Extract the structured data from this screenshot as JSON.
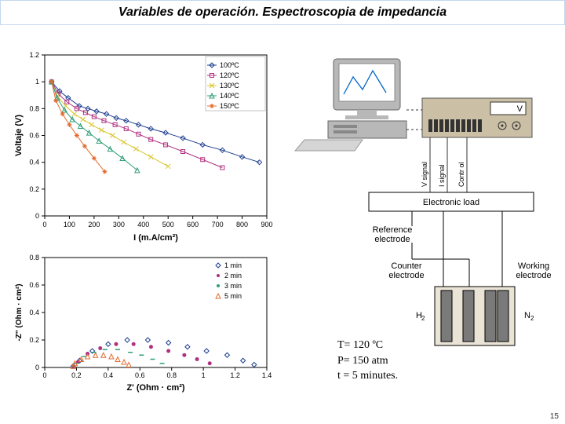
{
  "title": "Variables de operación. Espectroscopia de impedancia",
  "chart1": {
    "type": "line",
    "xlabel": "I (m.A/cm²)",
    "ylabel": "Voltaje (V)",
    "xlim": [
      0,
      900
    ],
    "ylim": [
      0,
      1.2
    ],
    "xtick_step": 100,
    "ytick_step": 0.2,
    "xticks": [
      "0",
      "100",
      "200",
      "300",
      "400",
      "500",
      "600",
      "700",
      "800",
      "900"
    ],
    "yticks": [
      "0",
      "0.2",
      "0.4",
      "0.6",
      "0.8",
      "1",
      "1.2"
    ],
    "axis_color": "#000000",
    "grid_color": "#ffffff",
    "background": "#ffffff",
    "label_fontsize": 11,
    "tick_fontsize": 9,
    "legend_items": [
      {
        "label": "100ºC",
        "marker": "diamond",
        "color": "#1b3d8f"
      },
      {
        "label": "120ºC",
        "marker": "square",
        "color": "#b03080"
      },
      {
        "label": "130ºC",
        "marker": "x",
        "color": "#d7c52e"
      },
      {
        "label": "140ºC",
        "marker": "triangle",
        "color": "#2e9e7a"
      },
      {
        "label": "150ºC",
        "marker": "asterisk",
        "color": "#e46a2e"
      }
    ],
    "series": [
      {
        "name": "100ºC",
        "color": "#1b3d8f",
        "marker": "diamond",
        "points": [
          [
            28,
            1.0
          ],
          [
            60,
            0.93
          ],
          [
            95,
            0.88
          ],
          [
            140,
            0.82
          ],
          [
            175,
            0.8
          ],
          [
            210,
            0.78
          ],
          [
            250,
            0.76
          ],
          [
            290,
            0.73
          ],
          [
            330,
            0.71
          ],
          [
            380,
            0.68
          ],
          [
            430,
            0.65
          ],
          [
            490,
            0.62
          ],
          [
            560,
            0.58
          ],
          [
            640,
            0.53
          ],
          [
            720,
            0.49
          ],
          [
            800,
            0.44
          ],
          [
            870,
            0.4
          ]
        ]
      },
      {
        "name": "120ºC",
        "color": "#b03080",
        "marker": "square",
        "points": [
          [
            28,
            1.0
          ],
          [
            55,
            0.91
          ],
          [
            90,
            0.85
          ],
          [
            130,
            0.8
          ],
          [
            165,
            0.77
          ],
          [
            200,
            0.74
          ],
          [
            240,
            0.71
          ],
          [
            285,
            0.68
          ],
          [
            330,
            0.65
          ],
          [
            380,
            0.61
          ],
          [
            430,
            0.57
          ],
          [
            490,
            0.53
          ],
          [
            560,
            0.48
          ],
          [
            640,
            0.42
          ],
          [
            720,
            0.36
          ]
        ]
      },
      {
        "name": "130ºC",
        "color": "#d7c52e",
        "marker": "x",
        "points": [
          [
            28,
            1.0
          ],
          [
            52,
            0.89
          ],
          [
            85,
            0.82
          ],
          [
            120,
            0.76
          ],
          [
            155,
            0.72
          ],
          [
            190,
            0.68
          ],
          [
            230,
            0.64
          ],
          [
            275,
            0.6
          ],
          [
            320,
            0.55
          ],
          [
            370,
            0.5
          ],
          [
            430,
            0.44
          ],
          [
            500,
            0.37
          ]
        ]
      },
      {
        "name": "140ºC",
        "color": "#2e9e7a",
        "marker": "triangle",
        "points": [
          [
            28,
            1.0
          ],
          [
            50,
            0.88
          ],
          [
            80,
            0.79
          ],
          [
            112,
            0.72
          ],
          [
            145,
            0.67
          ],
          [
            180,
            0.62
          ],
          [
            220,
            0.56
          ],
          [
            265,
            0.5
          ],
          [
            315,
            0.43
          ],
          [
            375,
            0.34
          ]
        ]
      },
      {
        "name": "150ºC",
        "color": "#e46a2e",
        "marker": "asterisk",
        "points": [
          [
            28,
            1.0
          ],
          [
            45,
            0.86
          ],
          [
            72,
            0.76
          ],
          [
            100,
            0.68
          ],
          [
            130,
            0.6
          ],
          [
            162,
            0.52
          ],
          [
            200,
            0.43
          ],
          [
            243,
            0.33
          ]
        ]
      }
    ]
  },
  "chart2": {
    "type": "scatter",
    "xlabel": "Z' (Ohm · cm²)",
    "ylabel": "-Z'' (Ohm · cm²)",
    "xlim": [
      0,
      1.4
    ],
    "ylim": [
      0,
      0.8
    ],
    "xtick_step": 0.2,
    "ytick_step": 0.2,
    "xticks": [
      "0",
      "0.2",
      "0.4",
      "0.6",
      "0.8",
      "1",
      "1.2",
      "1.4"
    ],
    "yticks": [
      "0",
      "0.2",
      "0.4",
      "0.6",
      "0.8"
    ],
    "axis_color": "#000000",
    "background": "#ffffff",
    "label_fontsize": 11,
    "tick_fontsize": 9,
    "legend_items": [
      {
        "label": "1 min",
        "marker": "diamond",
        "color": "#1b3d8f"
      },
      {
        "label": "2 min",
        "marker": "dot",
        "color": "#b03080"
      },
      {
        "label": "3 min",
        "marker": "dash",
        "color": "#2e9e7a"
      },
      {
        "label": "5 min",
        "marker": "triangle",
        "color": "#e46a2e"
      }
    ],
    "series": [
      {
        "name": "1 min",
        "color": "#1b3d8f",
        "marker": "diamond",
        "points": [
          [
            0.18,
            0.01
          ],
          [
            0.22,
            0.05
          ],
          [
            0.3,
            0.12
          ],
          [
            0.4,
            0.17
          ],
          [
            0.52,
            0.2
          ],
          [
            0.65,
            0.2
          ],
          [
            0.78,
            0.18
          ],
          [
            0.9,
            0.15
          ],
          [
            1.02,
            0.12
          ],
          [
            1.15,
            0.09
          ],
          [
            1.25,
            0.05
          ],
          [
            1.32,
            0.02
          ]
        ]
      },
      {
        "name": "2 min",
        "color": "#b03080",
        "marker": "circle",
        "points": [
          [
            0.18,
            0.01
          ],
          [
            0.21,
            0.04
          ],
          [
            0.27,
            0.1
          ],
          [
            0.35,
            0.14
          ],
          [
            0.45,
            0.17
          ],
          [
            0.56,
            0.17
          ],
          [
            0.67,
            0.15
          ],
          [
            0.78,
            0.12
          ],
          [
            0.88,
            0.09
          ],
          [
            0.96,
            0.06
          ],
          [
            1.04,
            0.03
          ]
        ]
      },
      {
        "name": "3 min",
        "color": "#2e9e7a",
        "marker": "hline",
        "points": [
          [
            0.18,
            0.01
          ],
          [
            0.2,
            0.03
          ],
          [
            0.25,
            0.08
          ],
          [
            0.31,
            0.11
          ],
          [
            0.38,
            0.13
          ],
          [
            0.46,
            0.13
          ],
          [
            0.54,
            0.11
          ],
          [
            0.61,
            0.09
          ],
          [
            0.68,
            0.06
          ],
          [
            0.74,
            0.03
          ]
        ]
      },
      {
        "name": "5 min",
        "color": "#e46a2e",
        "marker": "triangle",
        "points": [
          [
            0.18,
            0.01
          ],
          [
            0.19,
            0.03
          ],
          [
            0.23,
            0.06
          ],
          [
            0.27,
            0.08
          ],
          [
            0.32,
            0.09
          ],
          [
            0.37,
            0.09
          ],
          [
            0.42,
            0.08
          ],
          [
            0.46,
            0.06
          ],
          [
            0.5,
            0.04
          ],
          [
            0.53,
            0.02
          ]
        ]
      }
    ]
  },
  "schematic": {
    "monitor_color": "#b8b8b8",
    "screen_color": "#ffffff",
    "plot_color": "#0066cc",
    "frg_color": "#cbbfa6",
    "knob_color": "#555555",
    "electronic_load_label": "Electronic load",
    "electronic_load_bg": "#ffffff",
    "reference_label": "Reference electrode",
    "counter_label": "Counter electrode",
    "working_label": "Working electrode",
    "h2_label": "H₂",
    "n2_label": "N₂",
    "electrode_color": "#7a7a7a",
    "electrode_border": "#000000",
    "electrolyte_color": "#eae4d6",
    "signal_labels": {
      "v": "V signal",
      "i": "I signal",
      "ctrl": "Contr ol"
    },
    "display_v": "V"
  },
  "params_block": {
    "lines": [
      "T= 120 ºC",
      "P= 150 atm",
      "t = 5 minutes."
    ],
    "fontsize": 14,
    "font": "Comic Sans MS"
  },
  "page_number": "15"
}
